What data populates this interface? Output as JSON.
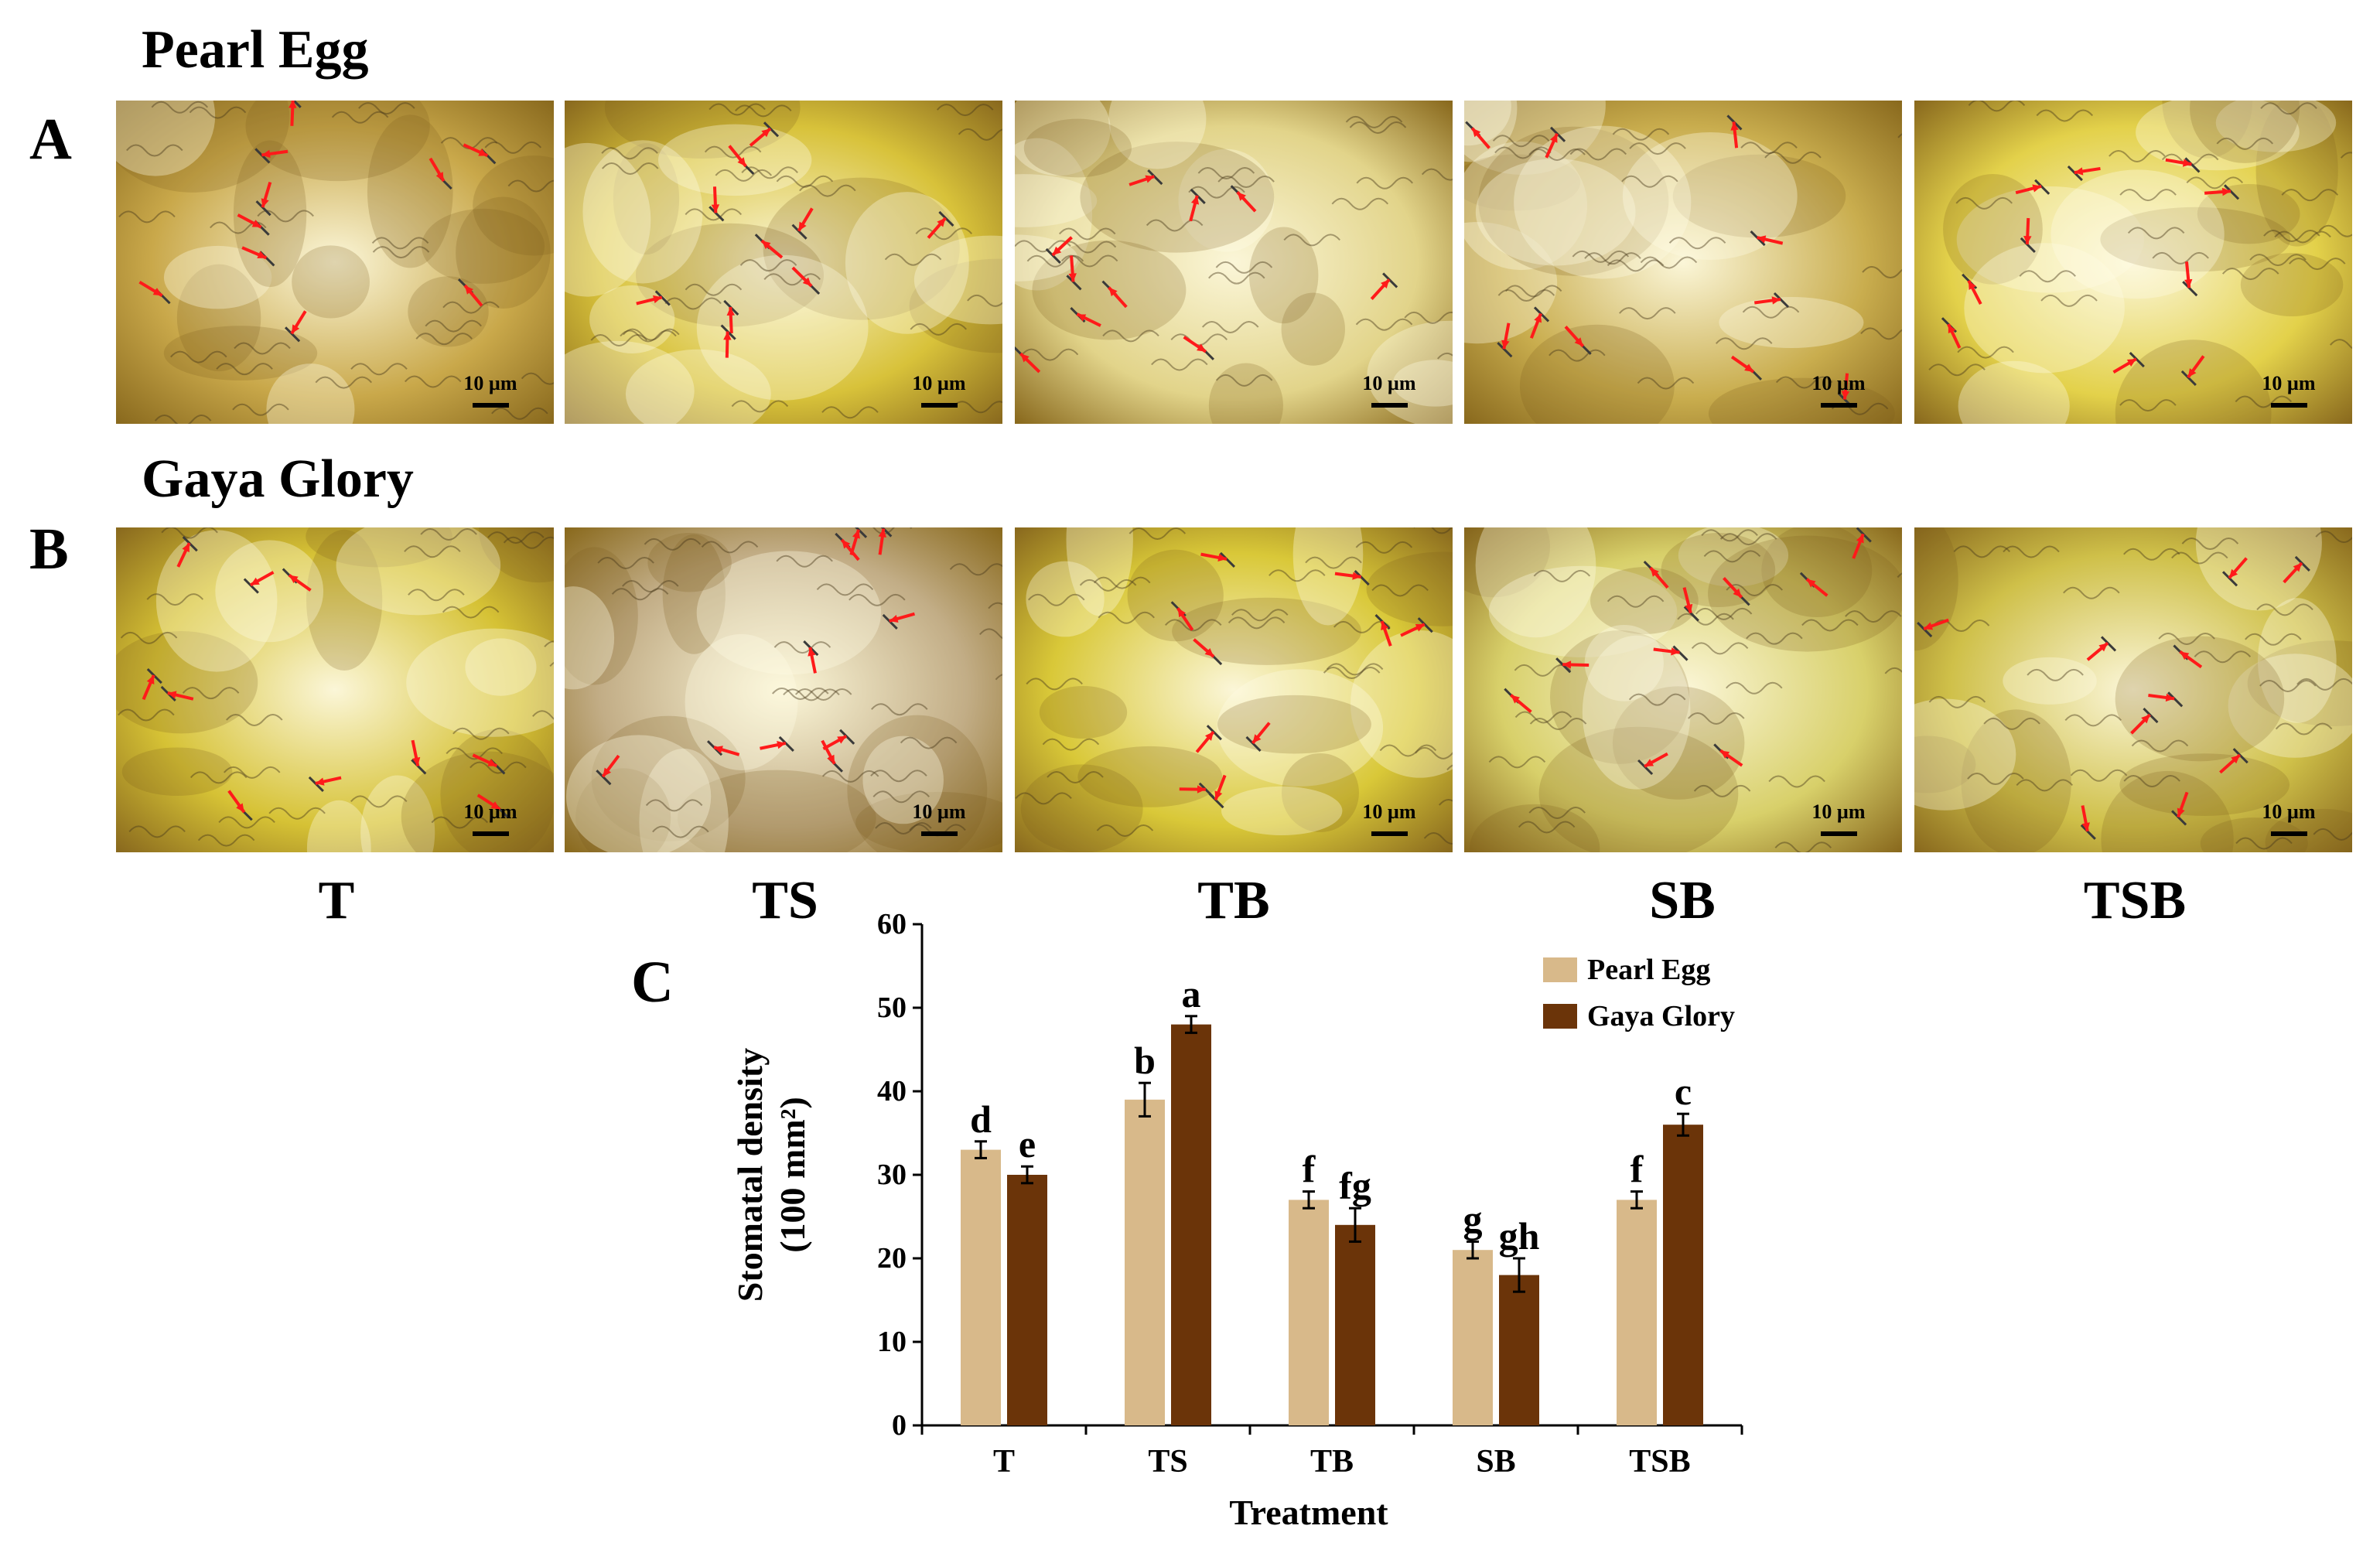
{
  "panels": {
    "A": {
      "letter": "A",
      "cultivar": "Pearl Egg"
    },
    "B": {
      "letter": "B",
      "cultivar": "Gaya Glory"
    },
    "C": {
      "letter": "C"
    }
  },
  "micrographs": {
    "scale_bar_label": "10 µm",
    "marker": "red-arrow-icon",
    "row_A": [
      {
        "treatment": "T",
        "tone": "#c9a84a"
      },
      {
        "treatment": "TS",
        "tone": "#d8c23a"
      },
      {
        "treatment": "TB",
        "tone": "#e2d48a"
      },
      {
        "treatment": "SB",
        "tone": "#c9ad4e"
      },
      {
        "treatment": "TSB",
        "tone": "#e3d14a"
      }
    ],
    "row_B": [
      {
        "treatment": "T",
        "tone": "#d6c235"
      },
      {
        "treatment": "TS",
        "tone": "#c2ad86"
      },
      {
        "treatment": "TB",
        "tone": "#d9c838"
      },
      {
        "treatment": "SB",
        "tone": "#d8d06a"
      },
      {
        "treatment": "TSB",
        "tone": "#cfc049"
      }
    ]
  },
  "treatments": [
    "T",
    "TS",
    "TB",
    "SB",
    "TSB"
  ],
  "chart_data": {
    "type": "bar",
    "xlabel": "Treatment",
    "ylabel": "Stomatal density",
    "ylabel_unit": "(100 mm²)",
    "ylim": [
      0,
      60
    ],
    "yticks": [
      0,
      10,
      20,
      30,
      40,
      50,
      60
    ],
    "categories": [
      "T",
      "TS",
      "TB",
      "SB",
      "TSB"
    ],
    "legend_position": "top-right",
    "series": [
      {
        "name": "Pearl Egg",
        "color": "#d8b98a",
        "values": [
          33,
          39,
          27,
          21,
          27
        ],
        "errors": [
          1,
          2,
          1,
          1,
          1
        ],
        "letters": [
          "d",
          "b",
          "f",
          "g",
          "f"
        ]
      },
      {
        "name": "Gaya Glory",
        "color": "#6b3409",
        "values": [
          30,
          48,
          24,
          18,
          36
        ],
        "errors": [
          1,
          1,
          2,
          2,
          1.3
        ],
        "letters": [
          "e",
          "a",
          "fg",
          "gh",
          "c"
        ]
      }
    ]
  }
}
